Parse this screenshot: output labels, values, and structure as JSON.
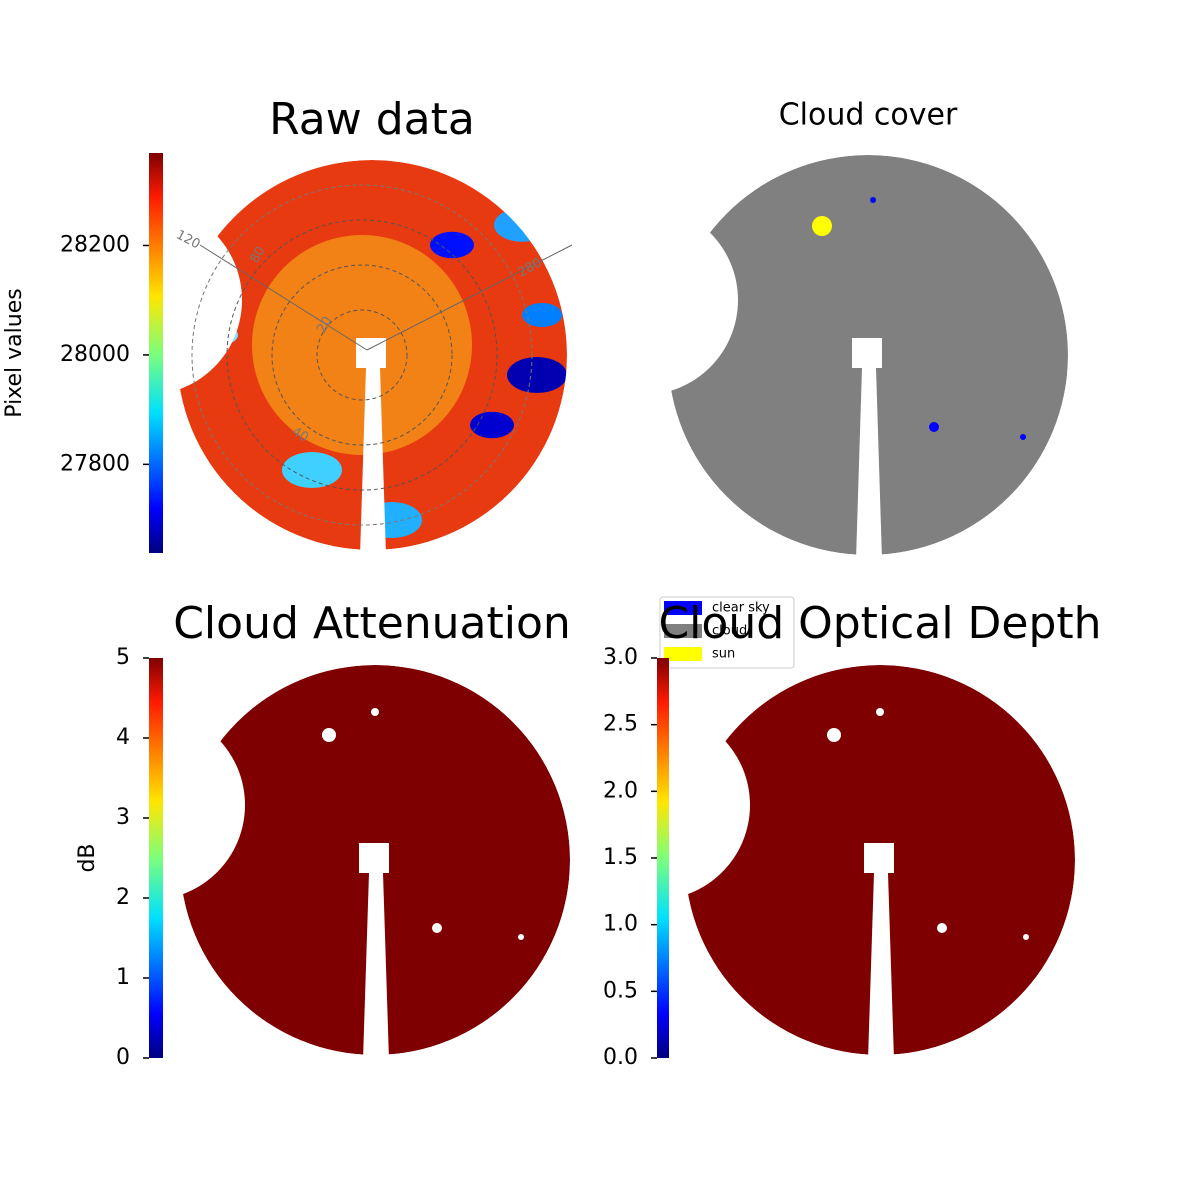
{
  "chart_data": [
    {
      "type": "image",
      "title": "Raw data",
      "colorbar_label": "Pixel values",
      "colormap": "jet",
      "ylim": [
        27638,
        28369
      ],
      "yticks": [
        27800,
        28000,
        28200
      ],
      "annotations": [
        "120",
        "80",
        "20",
        "40",
        "280"
      ]
    },
    {
      "type": "image",
      "title": "Cloud cover",
      "series": [
        {
          "name": "clear sky",
          "color": "#0000ff"
        },
        {
          "name": "cloud",
          "color": "#808080"
        },
        {
          "name": "sun",
          "color": "#ffff00"
        }
      ]
    },
    {
      "type": "image",
      "title": "Cloud Attenuation",
      "colorbar_label": "dB",
      "colormap": "jet",
      "color": "#7f0000",
      "ylim": [
        0,
        5
      ],
      "yticks": [
        0,
        1,
        2,
        3,
        4,
        5
      ]
    },
    {
      "type": "image",
      "title": "Cloud Optical Depth",
      "colormap": "jet",
      "color": "#7f0000",
      "ylim": [
        0,
        3
      ],
      "yticks": [
        {
          "value": 0,
          "label": "0.0"
        },
        0.5,
        {
          "value": 1,
          "label": "1.0"
        },
        1.5,
        {
          "value": 2,
          "label": "2.0"
        },
        2.5,
        {
          "value": 3,
          "label": "3.0"
        }
      ]
    }
  ]
}
